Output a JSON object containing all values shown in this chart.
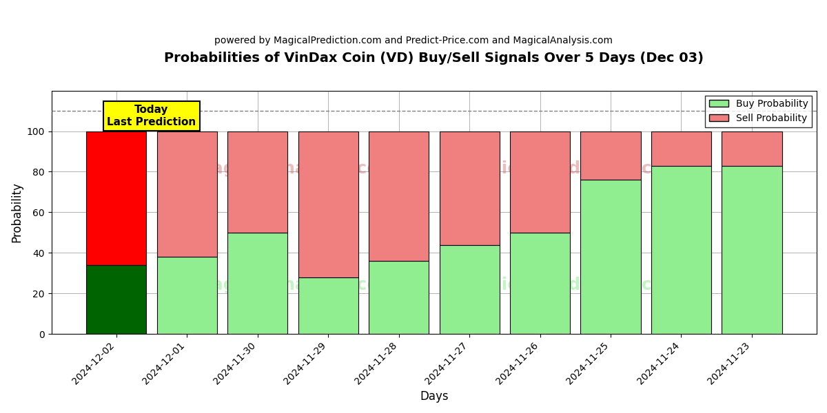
{
  "title": "Probabilities of VinDax Coin (VD) Buy/Sell Signals Over 5 Days (Dec 03)",
  "subtitle": "powered by MagicalPrediction.com and Predict-Price.com and MagicalAnalysis.com",
  "xlabel": "Days",
  "ylabel": "Probability",
  "dates": [
    "2024-12-02",
    "2024-12-01",
    "2024-11-30",
    "2024-11-29",
    "2024-11-28",
    "2024-11-27",
    "2024-11-26",
    "2024-11-25",
    "2024-11-24",
    "2024-11-23"
  ],
  "buy_values": [
    34,
    38,
    50,
    28,
    36,
    44,
    50,
    76,
    83,
    83
  ],
  "sell_values": [
    66,
    62,
    50,
    72,
    64,
    56,
    50,
    24,
    17,
    17
  ],
  "today_buy_color": "#006400",
  "today_sell_color": "#ff0000",
  "buy_color": "#90ee90",
  "sell_color": "#f08080",
  "today_label_bg": "#ffff00",
  "today_label_text": "Today\nLast Prediction",
  "dashed_line_y": 110,
  "ylim": [
    0,
    120
  ],
  "yticks": [
    0,
    20,
    40,
    60,
    80,
    100
  ],
  "bar_edgecolor": "#000000",
  "bar_linewidth": 0.8,
  "bar_width": 0.85
}
